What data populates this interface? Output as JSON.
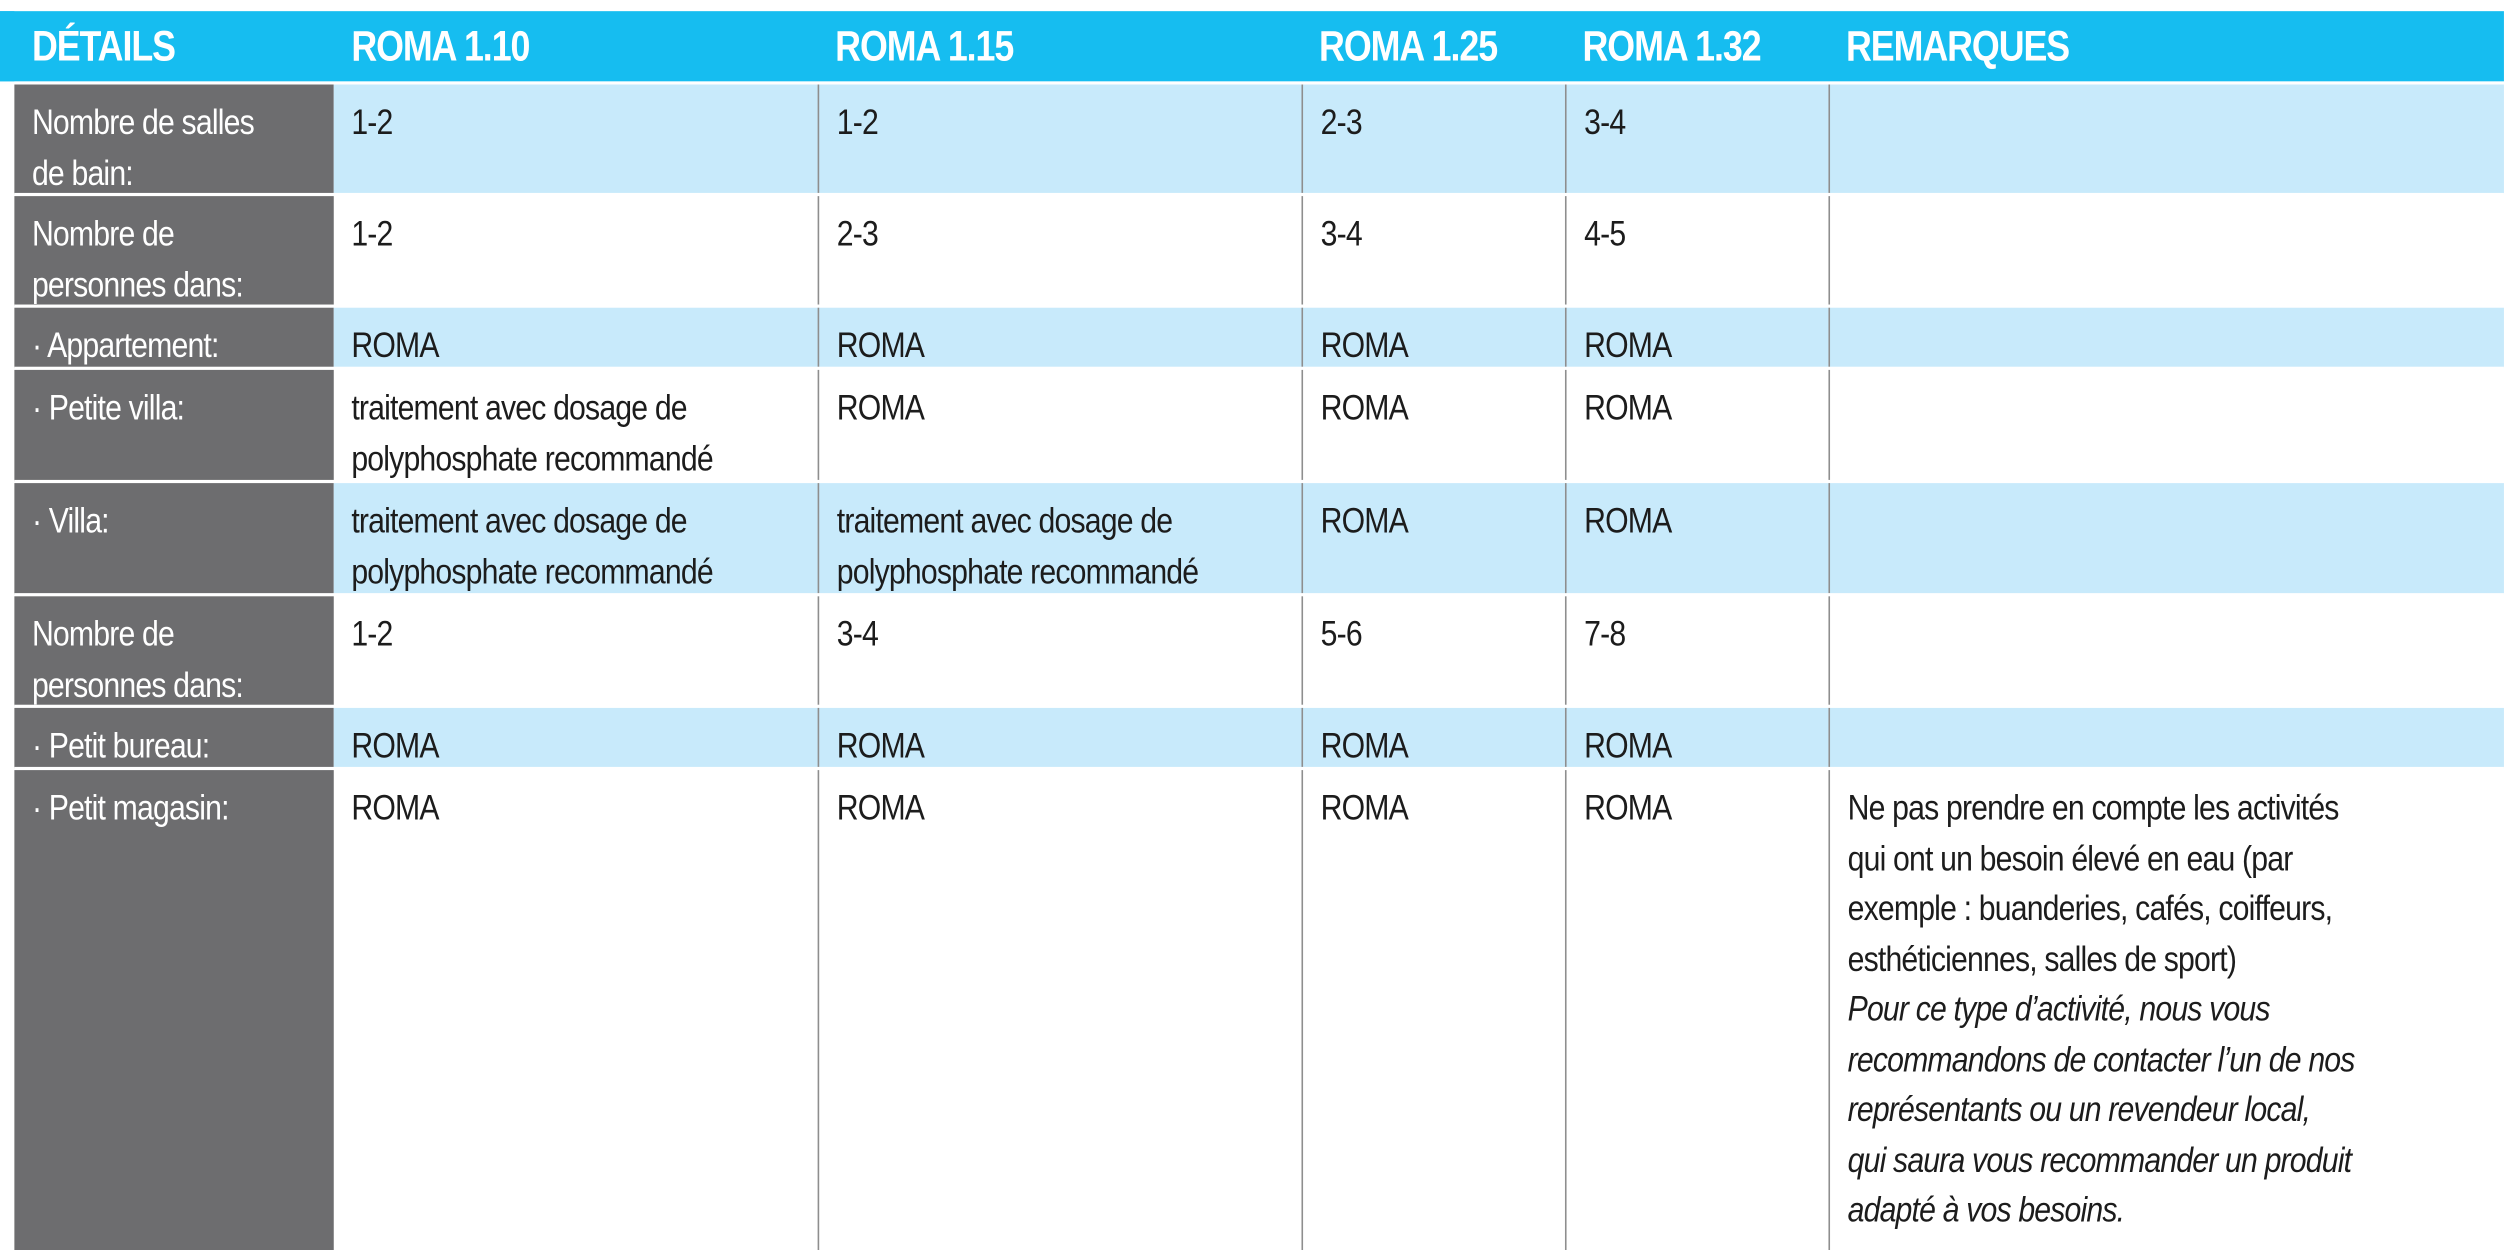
{
  "header": {
    "col0": "DÉTAILS",
    "col1": "ROMA 1.10",
    "col2": "ROMA 1.15",
    "col3": "ROMA 1.25",
    "col4": "ROMA 1.32",
    "col5": "REMARQUES"
  },
  "colors": {
    "header_bg": "#16bdf0",
    "label_column_bg": "#6d6d6f",
    "row_light_blue": "#c8eafb",
    "row_white": "#ffffff"
  },
  "rows": [
    {
      "label": [
        "Nombre de salles",
        "de bain:"
      ],
      "values": [
        "1-2",
        "1-2",
        "2-3",
        "3-4"
      ],
      "remark": ""
    },
    {
      "label": [
        "Nombre de",
        "personnes dans:"
      ],
      "values": [
        "1-2",
        "2-3",
        "3-4",
        "4-5"
      ],
      "remark": ""
    },
    {
      "label": [
        "· Appartement:"
      ],
      "values": [
        "ROMA",
        "ROMA",
        "ROMA",
        "ROMA"
      ],
      "remark": ""
    },
    {
      "label": [
        "· Petite villa:"
      ],
      "values": [
        [
          "traitement avec dosage de",
          "polyphosphate recommandé"
        ],
        "ROMA",
        "ROMA",
        "ROMA"
      ],
      "remark": ""
    },
    {
      "label": [
        "· Villa:"
      ],
      "values": [
        [
          "traitement avec dosage de",
          "polyphosphate recommandé"
        ],
        [
          "traitement avec dosage de",
          "polyphosphate recommandé"
        ],
        "ROMA",
        "ROMA"
      ],
      "remark": ""
    },
    {
      "label": [
        "Nombre de",
        "personnes dans:"
      ],
      "values": [
        "1-2",
        "3-4",
        "5-6",
        "7-8"
      ],
      "remark": ""
    },
    {
      "label": [
        "· Petit bureau:"
      ],
      "values": [
        "ROMA",
        "ROMA",
        "ROMA",
        "ROMA"
      ],
      "remark": ""
    },
    {
      "label": [
        "· Petit magasin:"
      ],
      "values": [
        "ROMA",
        "ROMA",
        "ROMA",
        "ROMA"
      ],
      "remark_regular": [
        "Ne pas prendre en compte les activités",
        "qui ont un besoin élevé en eau (par",
        "exemple : buanderies, cafés, coiffeurs,",
        "esthéticiennes, salles de sport)"
      ],
      "remark_italic": [
        "Pour ce type d’activité, nous vous",
        "recommandons de contacter l’un de nos",
        "représentants ou un revendeur local,",
        "qui saura vous recommander un produit",
        "adapté à vos besoins."
      ]
    }
  ]
}
